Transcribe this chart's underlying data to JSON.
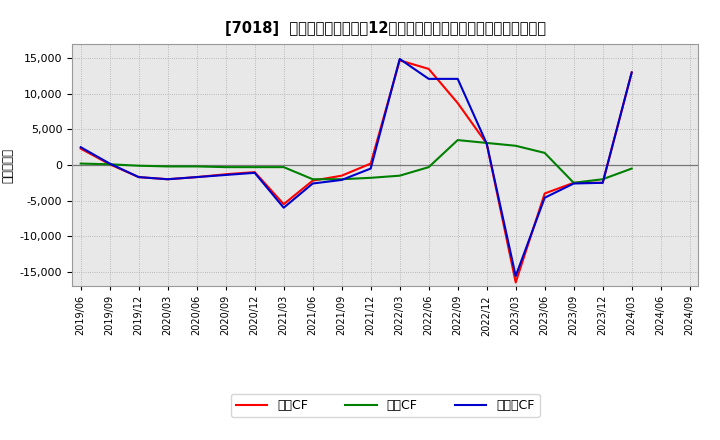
{
  "title": "[7018]  キャッシュフローの12か月移動合計の対前年同期増減額の推移",
  "ylabel": "（百万円）",
  "background_color": "#ffffff",
  "plot_bg_color": "#e8e8e8",
  "ylim": [
    -17000,
    17000
  ],
  "yticks": [
    -15000,
    -10000,
    -5000,
    0,
    5000,
    10000,
    15000
  ],
  "legend_labels": [
    "営業CF",
    "投資CF",
    "フリーCF"
  ],
  "line_colors": [
    "#ff0000",
    "#008000",
    "#0000cc"
  ],
  "x_labels": [
    "2019/06",
    "2019/09",
    "2019/12",
    "2020/03",
    "2020/06",
    "2020/09",
    "2020/12",
    "2021/03",
    "2021/06",
    "2021/09",
    "2021/12",
    "2022/03",
    "2022/06",
    "2022/09",
    "2022/12",
    "2023/03",
    "2023/06",
    "2023/09",
    "2023/12",
    "2024/03",
    "2024/06",
    "2024/09"
  ],
  "operating_cf": [
    2300,
    100,
    -1700,
    -2000,
    -1700,
    -1300,
    -1000,
    -5500,
    -2200,
    -1500,
    200,
    14700,
    13500,
    8700,
    3000,
    -16500,
    -4000,
    -2500,
    -2500,
    13000,
    null,
    null
  ],
  "investing_cf": [
    200,
    100,
    -100,
    -200,
    -200,
    -300,
    -300,
    -300,
    -2000,
    -2000,
    -1800,
    -1500,
    -300,
    3500,
    3100,
    2700,
    1700,
    -2500,
    -2000,
    -500,
    null,
    null
  ],
  "free_cf": [
    2500,
    200,
    -1700,
    -2000,
    -1700,
    -1400,
    -1100,
    -6000,
    -2600,
    -2100,
    -500,
    14900,
    12100,
    12100,
    3000,
    -15600,
    -4600,
    -2600,
    -2500,
    13000,
    null,
    null
  ]
}
